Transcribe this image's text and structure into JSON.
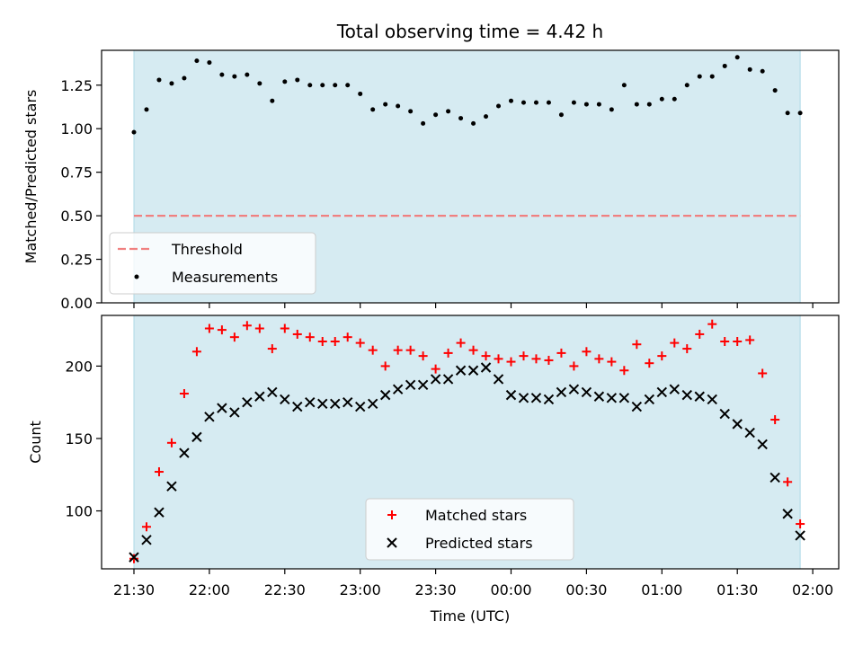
{
  "title": "Total observing time = 4.42 h",
  "colors": {
    "span_fill": "#add8e6",
    "threshold": "#f08080",
    "matched": "#ff0000",
    "predicted": "#000000",
    "measurement": "#000000"
  },
  "x_ticks": [
    "21:30",
    "22:00",
    "22:30",
    "23:00",
    "23:30",
    "00:00",
    "00:30",
    "01:00",
    "01:30",
    "02:00"
  ],
  "chart_data": [
    {
      "type": "scatter",
      "ylabel": "Matched/Predicted stars",
      "xlabel": "",
      "ylim": [
        0,
        1.45
      ],
      "y_ticks": [
        "0.00",
        "0.25",
        "0.50",
        "0.75",
        "1.00",
        "1.25"
      ],
      "legend": {
        "placement": "lower-left",
        "entries": [
          "Threshold",
          "Measurements"
        ]
      },
      "span": {
        "start_min": 0,
        "end_min": 265
      },
      "threshold": {
        "name": "Threshold",
        "value": 0.5,
        "x_range_min": [
          0,
          265
        ]
      },
      "series": [
        {
          "name": "Measurements",
          "marker": "dot",
          "x_min": [
            0,
            5,
            10,
            15,
            20,
            25,
            30,
            35,
            40,
            45,
            50,
            55,
            60,
            65,
            70,
            75,
            80,
            85,
            90,
            95,
            100,
            105,
            110,
            115,
            120,
            125,
            130,
            135,
            140,
            145,
            150,
            155,
            160,
            165,
            170,
            175,
            180,
            185,
            190,
            195,
            200,
            205,
            210,
            215,
            220,
            225,
            230,
            235,
            240,
            245,
            250,
            255,
            260,
            265
          ],
          "values": [
            0.98,
            1.11,
            1.28,
            1.26,
            1.29,
            1.39,
            1.38,
            1.31,
            1.3,
            1.31,
            1.26,
            1.16,
            1.27,
            1.28,
            1.25,
            1.25,
            1.25,
            1.25,
            1.2,
            1.11,
            1.14,
            1.13,
            1.1,
            1.03,
            1.08,
            1.1,
            1.06,
            1.03,
            1.07,
            1.13,
            1.16,
            1.15,
            1.15,
            1.15,
            1.08,
            1.15,
            1.14,
            1.14,
            1.11,
            1.25,
            1.14,
            1.14,
            1.17,
            1.17,
            1.25,
            1.3,
            1.3,
            1.36,
            1.41,
            1.34,
            1.33,
            1.22,
            1.09,
            1.09
          ]
        }
      ]
    },
    {
      "type": "scatter",
      "ylabel": "Count",
      "xlabel": "Time (UTC)",
      "ylim": [
        60,
        235
      ],
      "y_ticks": [
        "100",
        "150",
        "200"
      ],
      "legend": {
        "placement": "lower-center",
        "entries": [
          "Matched stars",
          "Predicted stars"
        ]
      },
      "span": {
        "start_min": 0,
        "end_min": 265
      },
      "series": [
        {
          "name": "Matched stars",
          "marker": "plus",
          "x_min": [
            0,
            5,
            10,
            15,
            20,
            25,
            30,
            35,
            40,
            45,
            50,
            55,
            60,
            65,
            70,
            75,
            80,
            85,
            90,
            95,
            100,
            105,
            110,
            115,
            120,
            125,
            130,
            135,
            140,
            145,
            150,
            155,
            160,
            165,
            170,
            175,
            180,
            185,
            190,
            195,
            200,
            205,
            210,
            215,
            220,
            225,
            230,
            235,
            240,
            245,
            250,
            255,
            260,
            265
          ],
          "values": [
            67,
            89,
            127,
            147,
            181,
            210,
            226,
            225,
            220,
            228,
            226,
            212,
            226,
            222,
            220,
            217,
            217,
            220,
            216,
            211,
            200,
            211,
            211,
            207,
            198,
            209,
            216,
            211,
            207,
            205,
            203,
            207,
            205,
            204,
            209,
            200,
            210,
            205,
            203,
            197,
            215,
            202,
            207,
            216,
            212,
            222,
            229,
            217,
            217,
            218,
            195,
            163,
            120,
            91
          ]
        },
        {
          "name": "Predicted stars",
          "marker": "x",
          "x_min": [
            0,
            5,
            10,
            15,
            20,
            25,
            30,
            35,
            40,
            45,
            50,
            55,
            60,
            65,
            70,
            75,
            80,
            85,
            90,
            95,
            100,
            105,
            110,
            115,
            120,
            125,
            130,
            135,
            140,
            145,
            150,
            155,
            160,
            165,
            170,
            175,
            180,
            185,
            190,
            195,
            200,
            205,
            210,
            215,
            220,
            225,
            230,
            235,
            240,
            245,
            250,
            255,
            260,
            265
          ],
          "values": [
            68,
            80,
            99,
            117,
            140,
            151,
            165,
            171,
            168,
            175,
            179,
            182,
            177,
            172,
            175,
            174,
            174,
            175,
            172,
            174,
            180,
            184,
            187,
            187,
            191,
            191,
            197,
            197,
            199,
            191,
            180,
            178,
            178,
            177,
            182,
            184,
            182,
            179,
            178,
            178,
            172,
            177,
            182,
            184,
            180,
            179,
            177,
            167,
            160,
            154,
            146,
            123,
            98,
            83
          ]
        }
      ]
    }
  ]
}
